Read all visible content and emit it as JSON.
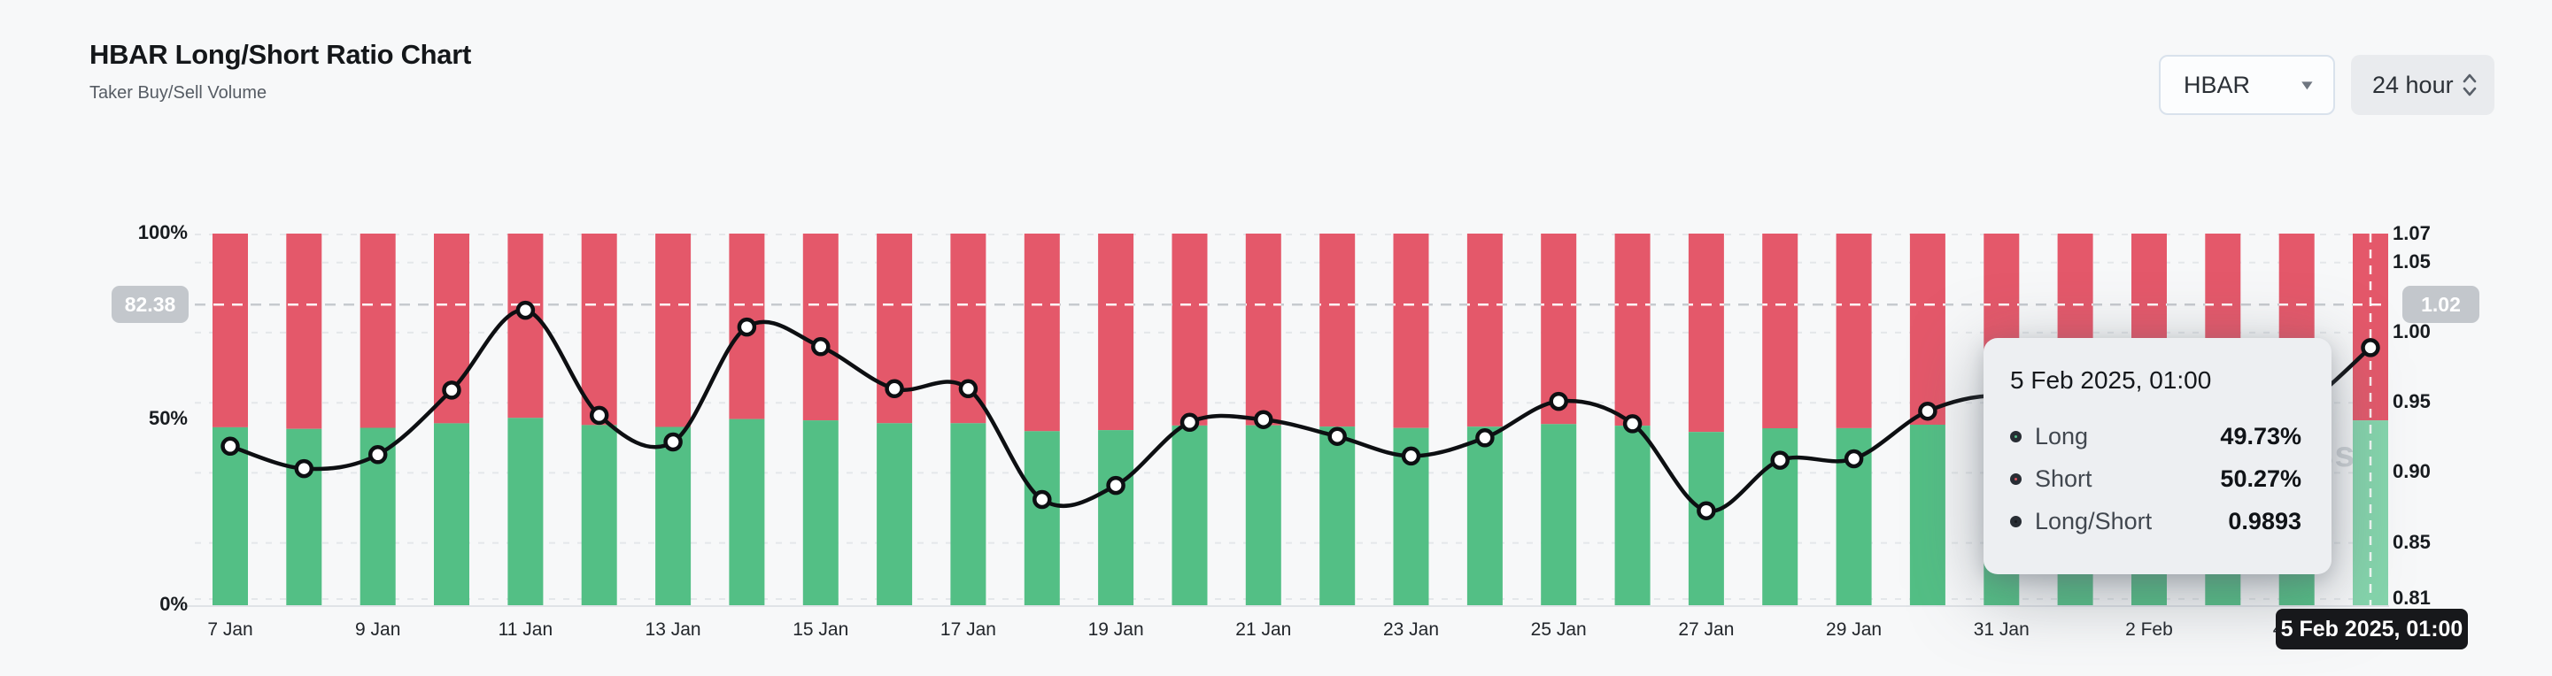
{
  "header": {
    "title": "HBAR Long/Short Ratio Chart",
    "subtitle": "Taker Buy/Sell Volume"
  },
  "controls": {
    "symbol": {
      "value": "HBAR",
      "icon": "caret-down"
    },
    "interval": {
      "value": "24 hour",
      "icon": "chevron-up-down"
    }
  },
  "watermark": "coinglass",
  "chart_data": {
    "type": "bar",
    "stacked": true,
    "title": "HBAR Long/Short Ratio Chart",
    "subtitle": "Taker Buy/Sell Volume",
    "grid": "horizontal-dashed",
    "legend_position": "none",
    "categories": [
      "7 Jan",
      "8 Jan",
      "9 Jan",
      "10 Jan",
      "11 Jan",
      "12 Jan",
      "13 Jan",
      "14 Jan",
      "15 Jan",
      "16 Jan",
      "17 Jan",
      "18 Jan",
      "19 Jan",
      "20 Jan",
      "21 Jan",
      "22 Jan",
      "23 Jan",
      "24 Jan",
      "25 Jan",
      "26 Jan",
      "27 Jan",
      "28 Jan",
      "29 Jan",
      "30 Jan",
      "31 Jan",
      "1 Feb",
      "2 Feb",
      "3 Feb",
      "4 Feb",
      "5 Feb"
    ],
    "x_tick_labels": [
      "7 Jan",
      "9 Jan",
      "11 Jan",
      "13 Jan",
      "15 Jan",
      "17 Jan",
      "19 Jan",
      "21 Jan",
      "23 Jan",
      "25 Jan",
      "27 Jan",
      "29 Jan",
      "31 Jan",
      "2 Feb",
      "4 Feb"
    ],
    "series": [
      {
        "name": "Long",
        "type": "bar",
        "unit": "%",
        "color": "#53bf85",
        "values": [
          47.89,
          47.45,
          47.73,
          48.95,
          50.4,
          48.48,
          47.97,
          50.1,
          49.75,
          48.98,
          48.98,
          46.84,
          47.12,
          48.35,
          48.4,
          48.08,
          47.7,
          48.05,
          48.74,
          48.32,
          46.61,
          47.62,
          47.64,
          48.56,
          48.85,
          48.45,
          48.19,
          48.32,
          48.59,
          49.73
        ]
      },
      {
        "name": "Short",
        "type": "bar",
        "unit": "%",
        "color": "#e4586a",
        "values": [
          52.11,
          52.55,
          52.27,
          51.05,
          49.6,
          51.52,
          52.03,
          49.9,
          50.25,
          51.02,
          51.02,
          53.16,
          52.88,
          51.65,
          51.6,
          51.92,
          52.3,
          51.95,
          51.26,
          51.68,
          53.39,
          52.38,
          52.36,
          51.44,
          51.15,
          51.55,
          51.81,
          51.68,
          51.41,
          50.27
        ]
      },
      {
        "name": "Long/Short",
        "type": "line",
        "color": "#0d0f12",
        "values": [
          0.919,
          0.903,
          0.913,
          0.959,
          1.016,
          0.941,
          0.922,
          1.004,
          0.99,
          0.96,
          0.96,
          0.881,
          0.891,
          0.936,
          0.938,
          0.926,
          0.912,
          0.925,
          0.951,
          0.935,
          0.873,
          0.909,
          0.91,
          0.944,
          0.955,
          0.94,
          0.93,
          0.935,
          0.945,
          0.9893
        ]
      }
    ],
    "left_axis": {
      "ticks": [
        "100%",
        "50%",
        "0%"
      ],
      "range": [
        0,
        100
      ],
      "marker": "82.38"
    },
    "right_axis": {
      "ticks": [
        "1.07",
        "1.05",
        "1.00",
        "0.95",
        "0.90",
        "0.85",
        "0.81"
      ],
      "range": [
        0.81,
        1.07
      ],
      "marker": "1.02",
      "markline_value": 1.02
    },
    "highlight_index": 29,
    "highlight_bar_color": "#85d5ac"
  },
  "tooltip": {
    "title": "5 Feb 2025, 01:00",
    "rows": [
      {
        "label": "Long",
        "value": "49.73%",
        "color": "#54c189"
      },
      {
        "label": "Short",
        "value": "50.27%",
        "color": "#e0525f"
      },
      {
        "label": "Long/Short",
        "value": "0.9893",
        "color": "#17191d"
      }
    ]
  },
  "crosshair_label": "5 Feb 2025, 01:00"
}
